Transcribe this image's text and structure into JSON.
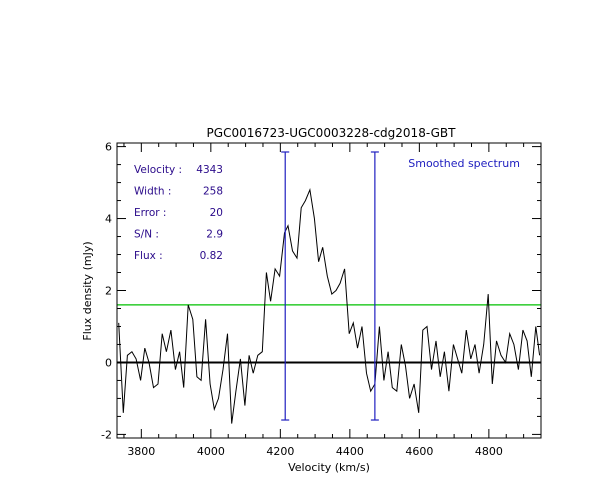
{
  "chart_data": {
    "type": "line",
    "title": "PGC0016723-UGC0003228-cdg2018-GBT",
    "xlabel": "Velocity (km/s)",
    "ylabel": "Flux density (mJy)",
    "xlim": [
      3730,
      4950
    ],
    "ylim": [
      -2.1,
      6.1
    ],
    "x_ticks": [
      3800,
      4000,
      4200,
      4400,
      4600,
      4800
    ],
    "y_ticks": [
      -2,
      0,
      2,
      4,
      6
    ],
    "x_tick_labels": [
      "3800",
      "4000",
      "4200",
      "4400",
      "4600",
      "4800"
    ],
    "y_tick_labels": [
      "-2",
      "0",
      "2",
      "4",
      "6"
    ],
    "annotation": "Smoothed spectrum",
    "stats": [
      {
        "label": "Velocity :",
        "value": "4343"
      },
      {
        "label": "Width :",
        "value": "258"
      },
      {
        "label": "Error :",
        "value": "20"
      },
      {
        "label": "S/N :",
        "value": "2.9"
      },
      {
        "label": "Flux :",
        "value": "0.82"
      }
    ],
    "rms_level": 1.6,
    "zero_level": 0,
    "markers": [
      {
        "x": 4214,
        "y_top": 5.85,
        "y_bottom": -1.6
      },
      {
        "x": 4472,
        "y_top": 5.85,
        "y_bottom": -1.6
      }
    ],
    "colors": {
      "spectrum": "#000000",
      "rms": "#00c000",
      "markers": "#2020c0",
      "stats_text": "#2a0a8a",
      "zero": "#000000"
    },
    "series": [
      {
        "x": [
          3735,
          3748,
          3760,
          3773,
          3785,
          3798,
          3810,
          3822,
          3835,
          3848,
          3860,
          3872,
          3885,
          3898,
          3910,
          3922,
          3935,
          3948,
          3960,
          3972,
          3985,
          3998,
          4010,
          4022,
          4035,
          4048,
          4060,
          4072,
          4085,
          4098,
          4110,
          4122,
          4135,
          4148,
          4160,
          4172,
          4185,
          4198,
          4212,
          4222,
          4235,
          4248,
          4260,
          4272,
          4285,
          4298,
          4310,
          4322,
          4335,
          4348,
          4360,
          4372,
          4385,
          4398,
          4410,
          4422,
          4435,
          4448,
          4460,
          4472,
          4485,
          4498,
          4510,
          4522,
          4535,
          4548,
          4560,
          4572,
          4585,
          4598,
          4610,
          4622,
          4635,
          4648,
          4660,
          4672,
          4685,
          4698,
          4710,
          4722,
          4735,
          4748,
          4760,
          4772,
          4785,
          4798,
          4810,
          4822,
          4835,
          4848,
          4860,
          4872,
          4885,
          4898,
          4910,
          4922,
          4935,
          4946
        ],
        "y": [
          1.1,
          -1.4,
          0.2,
          0.3,
          0.1,
          -0.5,
          0.4,
          0.0,
          -0.7,
          -0.6,
          0.8,
          0.3,
          0.9,
          -0.2,
          0.3,
          -0.7,
          1.6,
          1.2,
          -0.4,
          -0.5,
          1.2,
          -0.6,
          -1.3,
          -1.0,
          -0.2,
          0.8,
          -1.7,
          -0.8,
          0.1,
          -1.2,
          0.2,
          -0.3,
          0.2,
          0.3,
          2.5,
          1.7,
          2.6,
          2.4,
          3.6,
          3.8,
          3.1,
          2.9,
          4.3,
          4.5,
          4.8,
          4.0,
          2.8,
          3.2,
          2.4,
          1.9,
          2.0,
          2.2,
          2.6,
          0.8,
          1.1,
          0.4,
          1.0,
          -0.3,
          -0.8,
          -0.6,
          1.0,
          -0.5,
          0.3,
          -0.7,
          -0.8,
          0.5,
          -0.1,
          -1.0,
          -0.6,
          -1.4,
          0.9,
          1.0,
          -0.2,
          0.6,
          -0.4,
          0.3,
          -0.8,
          0.5,
          0.1,
          -0.3,
          0.9,
          0.1,
          0.5,
          -0.3,
          0.5,
          1.9,
          -0.6,
          0.6,
          0.2,
          0.0,
          0.8,
          0.5,
          -0.2,
          0.9,
          0.6,
          -0.4,
          1.0,
          0.2
        ]
      }
    ]
  }
}
